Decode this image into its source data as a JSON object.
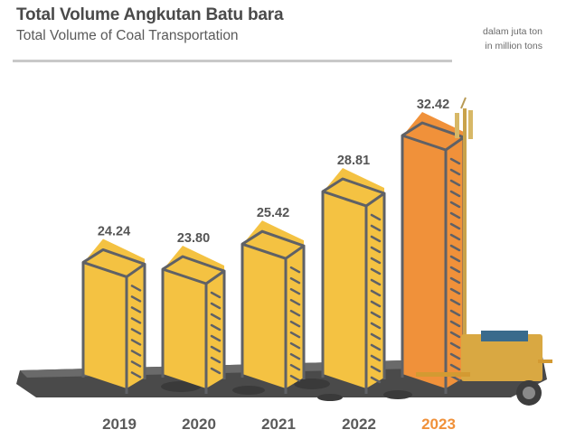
{
  "header": {
    "title": "Total Volume Angkutan Batu bara",
    "subtitle": "Total Volume of Coal Transportation",
    "unit_id": "dalam juta ton",
    "unit_en": "in million tons"
  },
  "colors": {
    "bar": "#f4c242",
    "bar_highlight": "#f0913a",
    "outline": "#5f6166",
    "label": "#555555",
    "year": "#5a5a5a",
    "year_highlight": "#f0913a",
    "ground": "#4a4a4a",
    "rule": "#c9c9c9"
  },
  "chart_data": {
    "type": "bar",
    "title": "Total Volume Angkutan Batu bara / Total Volume of Coal Transportation",
    "xlabel": "",
    "ylabel": "dalam juta ton / in million tons",
    "categories": [
      "2019",
      "2020",
      "2021",
      "2022",
      "2023"
    ],
    "values": [
      24.24,
      23.8,
      25.42,
      28.81,
      32.42
    ],
    "value_labels": [
      "24.24",
      "23.80",
      "25.42",
      "28.81",
      "32.42"
    ],
    "highlight_index": 4,
    "grid": false,
    "legend": "none",
    "style": "3d isometric bars on dark ground slab, with mobile trailer illustration at right"
  }
}
